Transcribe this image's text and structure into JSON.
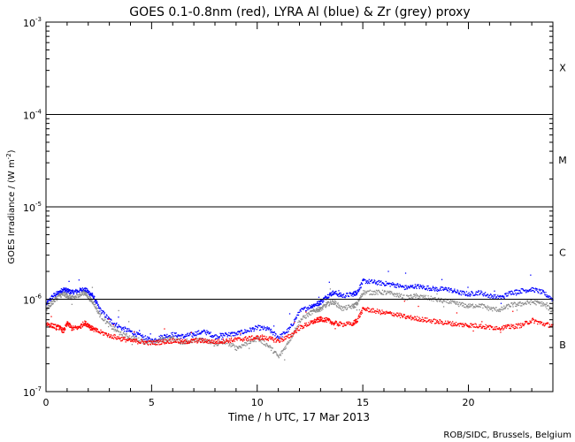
{
  "chart_data": {
    "type": "scatter",
    "title": "GOES 0.1-0.8nm (red), LYRA Al (blue) & Zr (grey) proxy",
    "xlabel": "Time / h UTC, 17 Mar 2013",
    "ylabel": "GOES Irradiance / (W m",
    "ylabel_exp": "-2",
    "ylabel_close": ")",
    "y_scale": "log",
    "xlim": [
      0,
      24
    ],
    "ylim": [
      1e-07,
      0.001
    ],
    "x_ticks": [
      {
        "value": 0,
        "label": "0"
      },
      {
        "value": 5,
        "label": "5"
      },
      {
        "value": 10,
        "label": "10"
      },
      {
        "value": 15,
        "label": "15"
      },
      {
        "value": 20,
        "label": "20"
      }
    ],
    "y_ticks": [
      {
        "exp": -7,
        "base": "10",
        "exp_label": "-7"
      },
      {
        "exp": -6,
        "base": "10",
        "exp_label": "-6"
      },
      {
        "exp": -5,
        "base": "10",
        "exp_label": "-5"
      },
      {
        "exp": -4,
        "base": "10",
        "exp_label": "-4"
      },
      {
        "exp": -3,
        "base": "10",
        "exp_label": "-3"
      }
    ],
    "flare_class_lines": [
      1e-06,
      1e-05,
      0.0001
    ],
    "flare_classes": [
      {
        "label": "B",
        "y": 3.2e-07
      },
      {
        "label": "C",
        "y": 3.2e-06
      },
      {
        "label": "M",
        "y": 3.2e-05
      },
      {
        "label": "X",
        "y": 0.00032
      }
    ],
    "grid": false,
    "legend": "none",
    "credit": "ROB/SIDC, Brussels, Belgium",
    "series": [
      {
        "color": "#0000ff",
        "x": [
          0,
          0.3,
          0.6,
          0.8,
          1.0,
          1.2,
          1.5,
          1.8,
          2.0,
          2.2,
          2.5,
          3.0,
          3.5,
          4.0,
          4.5,
          5.0,
          5.5,
          6.0,
          6.5,
          7.0,
          7.5,
          8.0,
          8.5,
          9.0,
          9.5,
          10.0,
          10.5,
          11.0,
          11.5,
          12.0,
          12.5,
          12.8,
          13.0,
          13.3,
          13.6,
          14.0,
          14.5,
          14.7,
          15.0,
          15.5,
          16.0,
          16.5,
          17.0,
          17.5,
          18.0,
          18.5,
          19.0,
          19.5,
          20.0,
          20.5,
          21.0,
          21.5,
          22.0,
          22.5,
          23.0,
          23.5,
          24.0
        ],
        "y": [
          9e-07,
          1.1e-06,
          1.2e-06,
          1.3e-06,
          1.25e-06,
          1.2e-06,
          1.25e-06,
          1.3e-06,
          1.2e-06,
          1.1e-06,
          8e-07,
          6e-07,
          5e-07,
          4.5e-07,
          4e-07,
          3.6e-07,
          4e-07,
          4.2e-07,
          4e-07,
          4.3e-07,
          4.5e-07,
          4e-07,
          4.2e-07,
          4.3e-07,
          4.6e-07,
          5e-07,
          4.8e-07,
          3.9e-07,
          4.8e-07,
          7.5e-07,
          8.5e-07,
          9e-07,
          9.5e-07,
          1.1e-06,
          1.2e-06,
          1.1e-06,
          1.15e-06,
          1.2e-06,
          1.6e-06,
          1.55e-06,
          1.5e-06,
          1.45e-06,
          1.35e-06,
          1.4e-06,
          1.35e-06,
          1.3e-06,
          1.3e-06,
          1.2e-06,
          1.15e-06,
          1.2e-06,
          1.1e-06,
          1.05e-06,
          1.2e-06,
          1.25e-06,
          1.3e-06,
          1.2e-06,
          1e-06
        ]
      },
      {
        "color": "#8c8c8c",
        "x": [
          0,
          0.3,
          0.6,
          0.8,
          1.0,
          1.2,
          1.5,
          1.8,
          2.0,
          2.2,
          2.5,
          3.0,
          3.5,
          4.0,
          4.5,
          5.0,
          5.5,
          6.0,
          6.5,
          7.0,
          7.5,
          8.0,
          8.5,
          9.0,
          9.5,
          10.0,
          10.5,
          11.0,
          11.5,
          12.0,
          12.5,
          12.8,
          13.0,
          13.3,
          13.6,
          14.0,
          14.5,
          14.7,
          15.0,
          15.5,
          16.0,
          16.5,
          17.0,
          17.5,
          18.0,
          18.5,
          19.0,
          19.5,
          20.0,
          20.5,
          21.0,
          21.5,
          22.0,
          22.5,
          23.0,
          23.5,
          24.0
        ],
        "y": [
          8e-07,
          9.5e-07,
          1.1e-06,
          1.15e-06,
          1.1e-06,
          1.05e-06,
          1.1e-06,
          1.2e-06,
          1.05e-06,
          9.5e-07,
          7e-07,
          5.2e-07,
          4.3e-07,
          3.9e-07,
          3.6e-07,
          3.4e-07,
          3.7e-07,
          3.8e-07,
          3.4e-07,
          3.7e-07,
          3.6e-07,
          3.3e-07,
          3.5e-07,
          3e-07,
          3.4e-07,
          3.8e-07,
          3.2e-07,
          2.4e-07,
          3.6e-07,
          6e-07,
          7.2e-07,
          7.8e-07,
          8e-07,
          9e-07,
          9.5e-07,
          8e-07,
          8.5e-07,
          9e-07,
          1.2e-06,
          1.2e-06,
          1.2e-06,
          1.15e-06,
          1.05e-06,
          1.1e-06,
          1.05e-06,
          1e-06,
          9.5e-07,
          9e-07,
          8.5e-07,
          8.8e-07,
          8e-07,
          7.8e-07,
          8.8e-07,
          9e-07,
          9.5e-07,
          9e-07,
          7.5e-07
        ]
      },
      {
        "color": "#ff0000",
        "x": [
          0,
          0.3,
          0.6,
          0.8,
          1.0,
          1.2,
          1.5,
          1.8,
          2.0,
          2.2,
          2.5,
          3.0,
          3.5,
          4.0,
          4.5,
          5.0,
          5.5,
          6.0,
          6.5,
          7.0,
          7.5,
          8.0,
          8.5,
          9.0,
          9.5,
          10.0,
          10.5,
          11.0,
          11.5,
          12.0,
          12.5,
          12.8,
          13.0,
          13.3,
          13.6,
          14.0,
          14.5,
          14.7,
          15.0,
          15.5,
          16.0,
          16.5,
          17.0,
          17.5,
          18.0,
          18.5,
          19.0,
          19.5,
          20.0,
          20.5,
          21.0,
          21.5,
          22.0,
          22.5,
          23.0,
          23.5,
          24.0
        ],
        "y": [
          5.5e-07,
          5.2e-07,
          5e-07,
          4.6e-07,
          5.6e-07,
          4.9e-07,
          5e-07,
          5.6e-07,
          5.3e-07,
          4.8e-07,
          4.5e-07,
          4.1e-07,
          3.8e-07,
          3.6e-07,
          3.5e-07,
          3.4e-07,
          3.5e-07,
          3.6e-07,
          3.5e-07,
          3.6e-07,
          3.6e-07,
          3.5e-07,
          3.6e-07,
          3.7e-07,
          3.8e-07,
          3.9e-07,
          3.8e-07,
          3.6e-07,
          4e-07,
          5e-07,
          5.6e-07,
          6e-07,
          6.2e-07,
          6e-07,
          5.6e-07,
          5.4e-07,
          5.5e-07,
          6e-07,
          8e-07,
          7.6e-07,
          7.2e-07,
          7e-07,
          6.5e-07,
          6.3e-07,
          6e-07,
          5.8e-07,
          5.6e-07,
          5.4e-07,
          5.3e-07,
          5.2e-07,
          5e-07,
          5e-07,
          5.1e-07,
          5.3e-07,
          6e-07,
          5.5e-07,
          5.2e-07
        ]
      }
    ]
  }
}
